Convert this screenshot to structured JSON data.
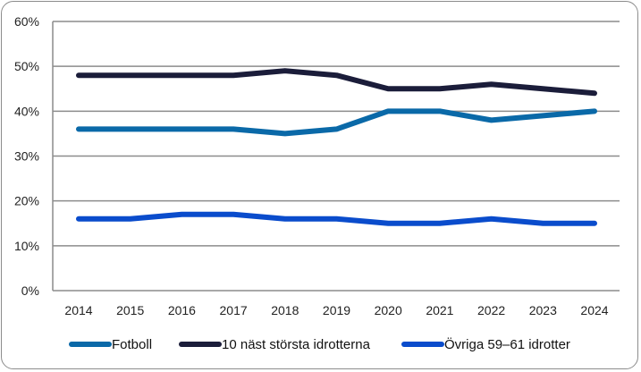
{
  "chart_data": {
    "type": "line",
    "title": "",
    "xlabel": "",
    "ylabel": "",
    "x": [
      "2014",
      "2015",
      "2016",
      "2017",
      "2018",
      "2019",
      "2020",
      "2021",
      "2022",
      "2023",
      "2024"
    ],
    "ylim": [
      0,
      60
    ],
    "yticks": [
      0,
      10,
      20,
      30,
      40,
      50,
      60
    ],
    "ytick_labels": [
      "0%",
      "10%",
      "20%",
      "30%",
      "40%",
      "50%",
      "60%"
    ],
    "grid": true,
    "legend_position": "bottom",
    "series": [
      {
        "name": "Fotboll",
        "color": "#0a69a8",
        "values": [
          36,
          36,
          36,
          36,
          35,
          36,
          40,
          40,
          38,
          39,
          40
        ]
      },
      {
        "name": "10 näst största idrotterna",
        "color": "#1b1d3a",
        "values": [
          48,
          48,
          48,
          48,
          49,
          48,
          45,
          45,
          46,
          45,
          44
        ]
      },
      {
        "name": "Övriga 59–61 idrotter",
        "color": "#0a4ccc",
        "values": [
          16,
          16,
          17,
          17,
          16,
          16,
          15,
          15,
          16,
          15,
          15
        ]
      }
    ]
  }
}
